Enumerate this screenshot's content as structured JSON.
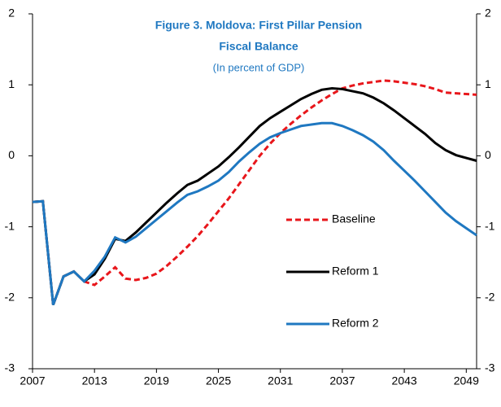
{
  "chart_data": {
    "type": "line",
    "title": "Figure 3. Moldova: First Pillar Pension",
    "subtitle": "Fiscal Balance",
    "note": "(In percent of GDP)",
    "x": [
      2007,
      2008,
      2009,
      2010,
      2011,
      2012,
      2013,
      2014,
      2015,
      2016,
      2017,
      2018,
      2019,
      2020,
      2021,
      2022,
      2023,
      2024,
      2025,
      2026,
      2027,
      2028,
      2029,
      2030,
      2031,
      2032,
      2033,
      2034,
      2035,
      2036,
      2037,
      2038,
      2039,
      2040,
      2041,
      2042,
      2043,
      2044,
      2045,
      2046,
      2047,
      2048,
      2049,
      2050
    ],
    "series": [
      {
        "name": "Baseline",
        "color": "#e8161b",
        "dash": true,
        "values": [
          -0.65,
          -0.64,
          -2.1,
          -1.7,
          -1.63,
          -1.77,
          -1.82,
          -1.7,
          -1.57,
          -1.73,
          -1.75,
          -1.72,
          -1.66,
          -1.55,
          -1.42,
          -1.28,
          -1.13,
          -0.96,
          -0.78,
          -0.6,
          -0.4,
          -0.2,
          0.0,
          0.17,
          0.32,
          0.45,
          0.57,
          0.68,
          0.78,
          0.87,
          0.95,
          0.99,
          1.02,
          1.04,
          1.06,
          1.05,
          1.03,
          1.01,
          0.98,
          0.94,
          0.89,
          0.88,
          0.87,
          0.86
        ]
      },
      {
        "name": "Reform 1",
        "color": "#000000",
        "dash": false,
        "values": [
          -0.65,
          -0.64,
          -2.1,
          -1.7,
          -1.63,
          -1.77,
          -1.67,
          -1.45,
          -1.17,
          -1.2,
          -1.08,
          -0.94,
          -0.8,
          -0.66,
          -0.53,
          -0.41,
          -0.35,
          -0.25,
          -0.15,
          -0.02,
          0.12,
          0.27,
          0.42,
          0.53,
          0.62,
          0.71,
          0.8,
          0.87,
          0.93,
          0.95,
          0.94,
          0.91,
          0.88,
          0.82,
          0.74,
          0.64,
          0.53,
          0.42,
          0.31,
          0.18,
          0.08,
          0.01,
          -0.03,
          -0.07
        ]
      },
      {
        "name": "Reform 2",
        "color": "#1f78c1",
        "dash": false,
        "values": [
          -0.65,
          -0.64,
          -2.1,
          -1.7,
          -1.63,
          -1.77,
          -1.62,
          -1.42,
          -1.15,
          -1.22,
          -1.14,
          -1.02,
          -0.9,
          -0.78,
          -0.66,
          -0.55,
          -0.5,
          -0.43,
          -0.35,
          -0.23,
          -0.08,
          0.05,
          0.17,
          0.26,
          0.32,
          0.37,
          0.42,
          0.44,
          0.46,
          0.46,
          0.42,
          0.36,
          0.29,
          0.2,
          0.08,
          -0.07,
          -0.21,
          -0.35,
          -0.5,
          -0.65,
          -0.8,
          -0.92,
          -1.02,
          -1.12
        ]
      }
    ],
    "xlim": [
      2007,
      2050
    ],
    "xticks": [
      2007,
      2013,
      2019,
      2025,
      2031,
      2037,
      2043,
      2049
    ],
    "ylim": [
      -3,
      2
    ],
    "yticks": [
      -3,
      -2,
      -1,
      0,
      1,
      2
    ],
    "y2lim": [
      -3,
      2
    ],
    "y2ticks": [
      -3,
      -2,
      -1,
      0,
      1,
      2
    ]
  }
}
